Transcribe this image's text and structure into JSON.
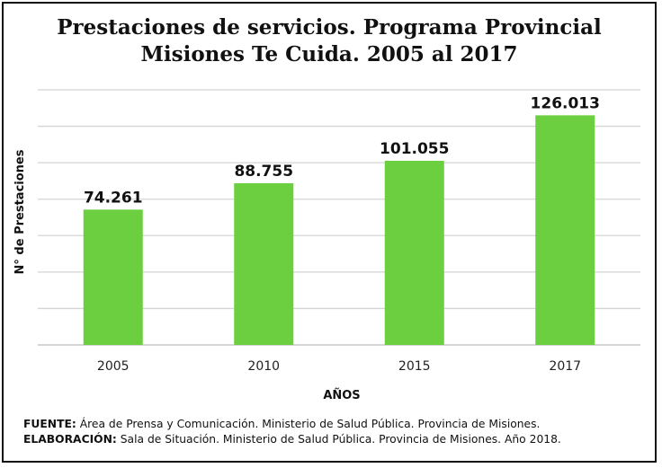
{
  "chart_data": {
    "type": "bar",
    "title_line1": "Prestaciones de servicios. Programa Provincial",
    "title_line2": "Misiones Te Cuida. 2005 al 2017",
    "xlabel": "AÑOS",
    "ylabel": "N° de Prestaciones",
    "categories": [
      "2005",
      "2010",
      "2015",
      "2017"
    ],
    "values": [
      74261,
      88755,
      101055,
      126013
    ],
    "data_labels": [
      "74.261",
      "88.755",
      "101.055",
      "126.013"
    ],
    "ylim": [
      0,
      140000
    ],
    "grid": true,
    "grid_step": 20000,
    "bar_color": "#6ccf3f"
  },
  "footer": {
    "source_label": "FUENTE:",
    "source_text": " Área de Prensa y Comunicación. Ministerio de Salud Pública. Provincia de Misiones.",
    "elab_label": "ELABORACIÓN:",
    "elab_text": " Sala de Situación. Ministerio de Salud Pública. Provincia de Misiones. Año 2018."
  }
}
